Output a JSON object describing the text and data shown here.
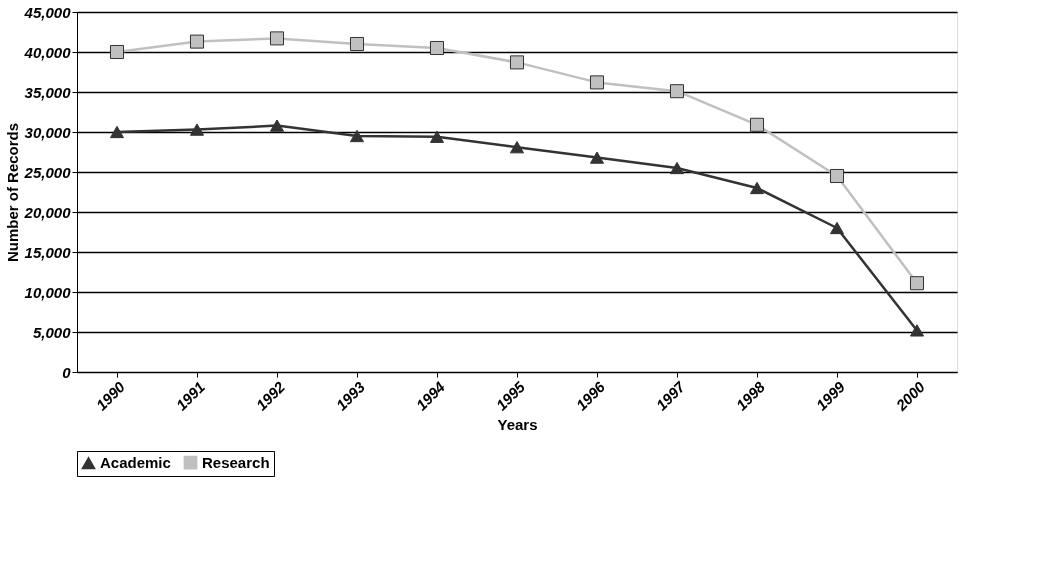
{
  "chart_data": {
    "type": "line",
    "xlabel": "Years",
    "ylabel": "Number of Records",
    "categories": [
      "1990",
      "1991",
      "1992",
      "1993",
      "1994",
      "1995",
      "1996",
      "1997",
      "1998",
      "1999",
      "2000"
    ],
    "series": [
      {
        "name": "Academic",
        "color": "#333333",
        "marker": "triangle",
        "values": [
          30000,
          30300,
          30800,
          29500,
          29400,
          28100,
          26800,
          25500,
          23000,
          18000,
          5200
        ]
      },
      {
        "name": "Research",
        "color": "#c0c0c0",
        "marker": "square",
        "values": [
          40000,
          41300,
          41700,
          41000,
          40500,
          38700,
          36200,
          35100,
          30900,
          24500,
          11100
        ]
      }
    ],
    "ylim": [
      0,
      45000
    ],
    "yticks": [
      0,
      {
        "value": 5000,
        "label": "5,000"
      },
      {
        "value": 10000,
        "label": "10,000"
      },
      {
        "value": 15000,
        "label": "15,000"
      },
      {
        "value": 20000,
        "label": "20,000"
      },
      {
        "value": 25000,
        "label": "25,000"
      },
      {
        "value": 30000,
        "label": "30,000"
      },
      {
        "value": 35000,
        "label": "35,000"
      },
      {
        "value": 40000,
        "label": "40,000"
      },
      {
        "value": 45000,
        "label": "45,000"
      }
    ],
    "grid": "y",
    "legend": "bottom",
    "line_style": "solid"
  }
}
